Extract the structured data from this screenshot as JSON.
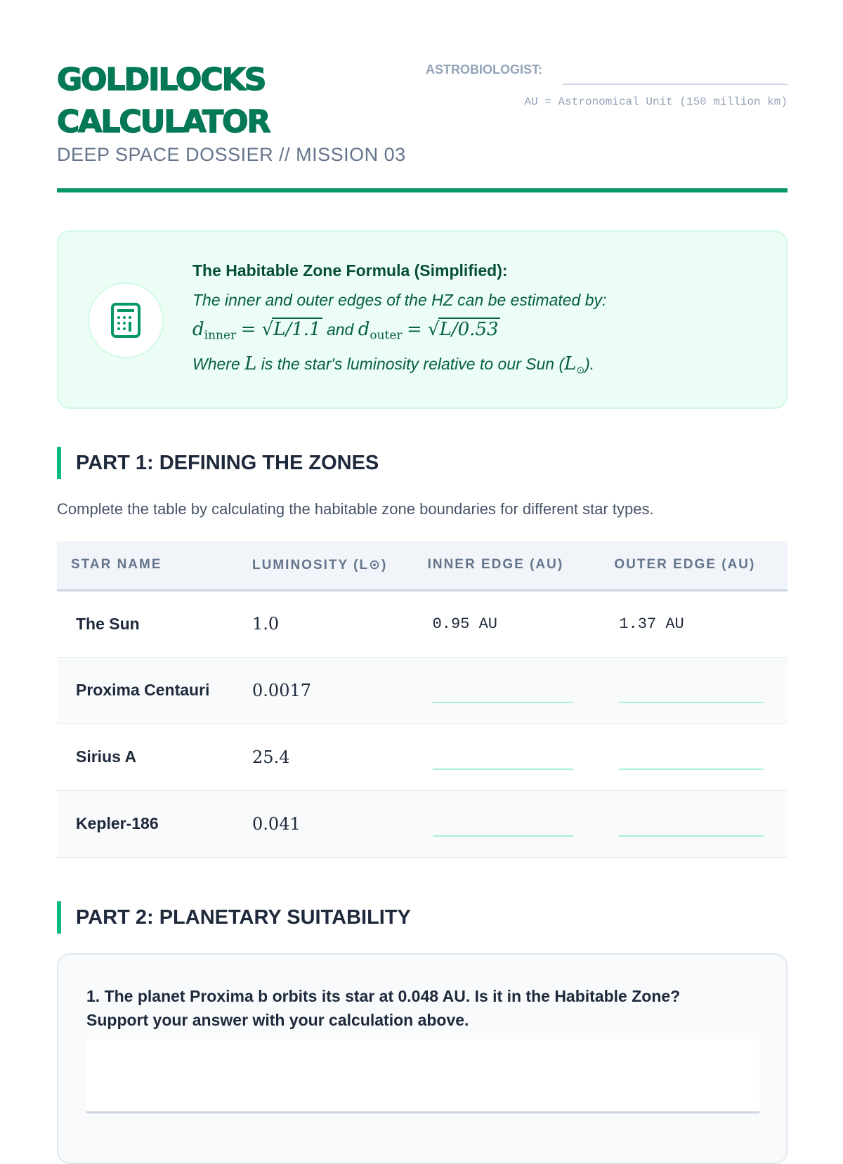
{
  "header": {
    "title_line1": "GOLDILOCKS",
    "title_line2": "CALCULATOR",
    "subtitle": "DEEP SPACE DOSSIER // MISSION 03",
    "astrobiologist_label": "ASTROBIOLOGIST:",
    "au_note": "AU = Astronomical Unit (150 million km)"
  },
  "formula": {
    "icon": "calculator-icon",
    "title": "The Habitable Zone Formula (Simplified):",
    "intro": "The inner and outer edges of the HZ can be estimated by:",
    "inner_var": "d",
    "inner_sub": "inner",
    "inner_expr": "L/1.1",
    "connector": "and",
    "outer_var": "d",
    "outer_sub": "outer",
    "outer_expr": "L/0.53",
    "where_pre": "Where",
    "where_var": "L",
    "where_post": "is the star's luminosity relative to our Sun (",
    "where_sym": "L",
    "where_sym_sub": "⊙",
    "where_end": ")."
  },
  "part1": {
    "heading": "PART 1: DEFINING THE ZONES",
    "description": "Complete the table by calculating the habitable zone boundaries for different star types.",
    "columns": [
      "STAR NAME",
      "LUMINOSITY (L⊙)",
      "INNER EDGE (AU)",
      "OUTER EDGE (AU)"
    ],
    "rows": [
      {
        "name": "The Sun",
        "luminosity": "1.0",
        "inner": "0.95 AU",
        "outer": "1.37 AU"
      },
      {
        "name": "Proxima Centauri",
        "luminosity": "0.0017",
        "inner": "",
        "outer": ""
      },
      {
        "name": "Sirius A",
        "luminosity": "25.4",
        "inner": "",
        "outer": ""
      },
      {
        "name": "Kepler-186",
        "luminosity": "0.041",
        "inner": "",
        "outer": ""
      }
    ]
  },
  "part2": {
    "heading": "PART 2: PLANETARY SUITABILITY",
    "question1": "1. The planet Proxima b orbits its star at 0.048 AU. Is it in the Habitable Zone? Support your answer with your calculation above.",
    "answer1": ""
  },
  "colors": {
    "accent": "#059669",
    "title": "#047857",
    "formula_bg": "#ecfdf5"
  }
}
